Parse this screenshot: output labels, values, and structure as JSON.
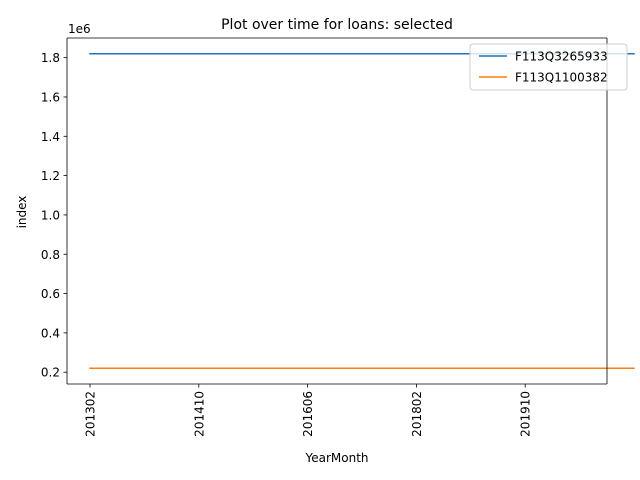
{
  "chart_data": {
    "type": "line",
    "title": "Plot over time for loans: selected",
    "xlabel": "YearMonth",
    "ylabel": "index",
    "y_offset_label": "1e6",
    "x_tick_labels": [
      "201302",
      "201410",
      "201606",
      "201802",
      "201910"
    ],
    "y_tick_labels": [
      "0.2",
      "0.4",
      "0.6",
      "0.8",
      "1.0",
      "1.2",
      "1.4",
      "1.6",
      "1.8"
    ],
    "y_tick_values": [
      0.2,
      0.4,
      0.6,
      0.8,
      1.0,
      1.2,
      1.4,
      1.6,
      1.8
    ],
    "ylim": [
      0.14,
      1.9
    ],
    "grid": false,
    "legend_position": "upper right",
    "series": [
      {
        "name": "F113Q3265933",
        "color": "#1f77b4",
        "x": [
          "201302",
          "201410",
          "201606",
          "201802",
          "201910",
          "202012"
        ],
        "values": [
          1.82,
          1.82,
          1.82,
          1.82,
          1.82,
          1.82
        ]
      },
      {
        "name": "F113Q1100382",
        "color": "#ff7f0e",
        "x": [
          "201302",
          "201410",
          "201606",
          "201802",
          "201910",
          "202012"
        ],
        "values": [
          0.22,
          0.22,
          0.22,
          0.22,
          0.22,
          0.22
        ]
      }
    ]
  }
}
